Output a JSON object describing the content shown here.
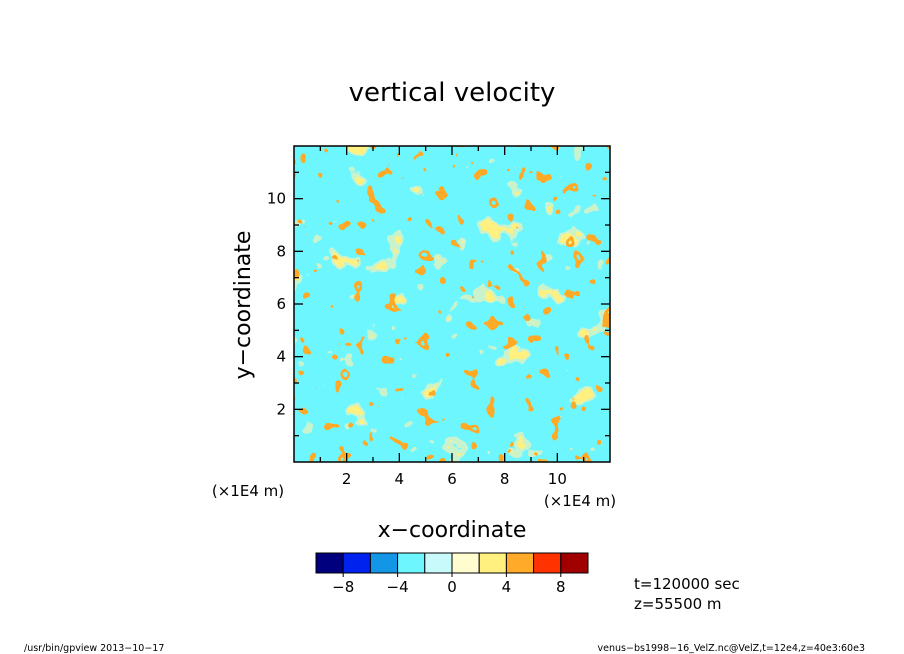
{
  "chart_data": {
    "type": "heatmap",
    "title": "vertical velocity",
    "xlabel": "x−coordinate",
    "ylabel": "y−coordinate",
    "x_unit": "(×1E4 m)",
    "y_unit": "(×1E4 m)",
    "xlim": [
      0,
      12
    ],
    "ylim": [
      0,
      12
    ],
    "x_ticks": [
      "2",
      "4",
      "6",
      "8",
      "10"
    ],
    "y_ticks": [
      "2",
      "4",
      "6",
      "8",
      "10"
    ],
    "colorbar": {
      "levels": [
        -10,
        -8,
        -6,
        -4,
        -2,
        0,
        2,
        4,
        6,
        8,
        10
      ],
      "tick_labels": [
        "−8",
        "−4",
        "0",
        "4",
        "8"
      ],
      "colors": [
        "#00007f",
        "#0022ee",
        "#1496e6",
        "#6ef6ff",
        "#c8fafc",
        "#fffcd0",
        "#fff080",
        "#ffaa28",
        "#ff3200",
        "#a00000"
      ]
    },
    "annotations": [
      "t=120000 sec",
      "z=55500 m"
    ]
  },
  "footer": {
    "left": "/usr/bin/gpview   2013−10−17",
    "right": "venus−bs1998−16_VelZ.nc@VelZ,t=12e4,z=40e3:60e3"
  }
}
